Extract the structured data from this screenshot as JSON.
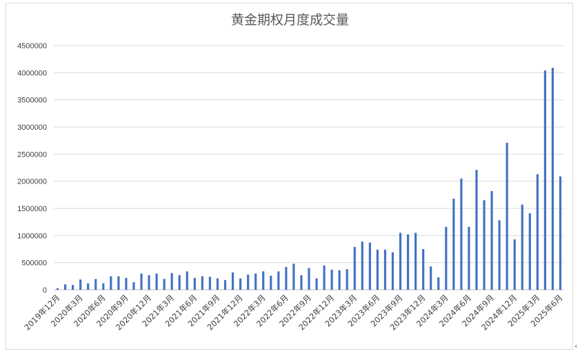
{
  "chart_data": {
    "type": "bar",
    "title": "黄金期权月度成交量",
    "xlabel": "",
    "ylabel": "",
    "ylim": [
      0,
      4500000
    ],
    "yticks": [
      0,
      500000,
      1000000,
      1500000,
      2000000,
      2500000,
      3000000,
      3500000,
      4000000,
      4500000
    ],
    "grid": true,
    "legend": "none",
    "bar_color": "#4472c4",
    "categories": [
      "2019年12月",
      "2020年1月",
      "2020年2月",
      "2020年3月",
      "2020年4月",
      "2020年5月",
      "2020年6月",
      "2020年7月",
      "2020年8月",
      "2020年9月",
      "2020年10月",
      "2020年11月",
      "2020年12月",
      "2021年1月",
      "2021年2月",
      "2021年3月",
      "2021年4月",
      "2021年5月",
      "2021年6月",
      "2021年7月",
      "2021年8月",
      "2021年9月",
      "2021年10月",
      "2021年11月",
      "2021年12月",
      "2022年1月",
      "2022年2月",
      "2022年3月",
      "2022年4月",
      "2022年5月",
      "2022年6月",
      "2022年7月",
      "2022年8月",
      "2022年9月",
      "2022年10月",
      "2022年11月",
      "2022年12月",
      "2023年1月",
      "2023年2月",
      "2023年3月",
      "2023年4月",
      "2023年5月",
      "2023年6月",
      "2023年7月",
      "2023年8月",
      "2023年9月",
      "2023年10月",
      "2023年11月",
      "2023年12月",
      "2024年1月",
      "2024年2月",
      "2024年3月",
      "2024年4月",
      "2024年5月",
      "2024年6月",
      "2024年7月",
      "2024年8月",
      "2024年9月",
      "2024年10月",
      "2024年11月",
      "2024年12月",
      "2025年1月",
      "2025年2月",
      "2025年3月",
      "2025年4月",
      "2025年5月",
      "2025年6月"
    ],
    "tick_labels_shown": [
      "2019年12月",
      "2020年3月",
      "2020年6月",
      "2020年9月",
      "2020年12月",
      "2021年3月",
      "2021年6月",
      "2021年9月",
      "2021年12月",
      "2022年3月",
      "2022年6月",
      "2022年9月",
      "2022年12月",
      "2023年3月",
      "2023年6月",
      "2023年9月",
      "2023年12月",
      "2024年3月",
      "2024年6月",
      "2024年9月",
      "2024年12月",
      "2025年3月",
      "2025年6月"
    ],
    "values": [
      30000,
      100000,
      90000,
      190000,
      120000,
      200000,
      120000,
      250000,
      250000,
      220000,
      140000,
      300000,
      270000,
      300000,
      200000,
      310000,
      270000,
      340000,
      220000,
      250000,
      240000,
      210000,
      180000,
      320000,
      210000,
      280000,
      300000,
      340000,
      260000,
      340000,
      420000,
      480000,
      270000,
      400000,
      210000,
      450000,
      370000,
      360000,
      380000,
      790000,
      890000,
      870000,
      740000,
      740000,
      690000,
      1050000,
      1020000,
      1050000,
      750000,
      430000,
      230000,
      1160000,
      1680000,
      2050000,
      1160000,
      2210000,
      1650000,
      1820000,
      1280000,
      2710000,
      930000,
      1570000,
      1410000,
      2130000,
      4040000,
      4090000,
      2090000
    ]
  },
  "corner_glyph": "‹"
}
